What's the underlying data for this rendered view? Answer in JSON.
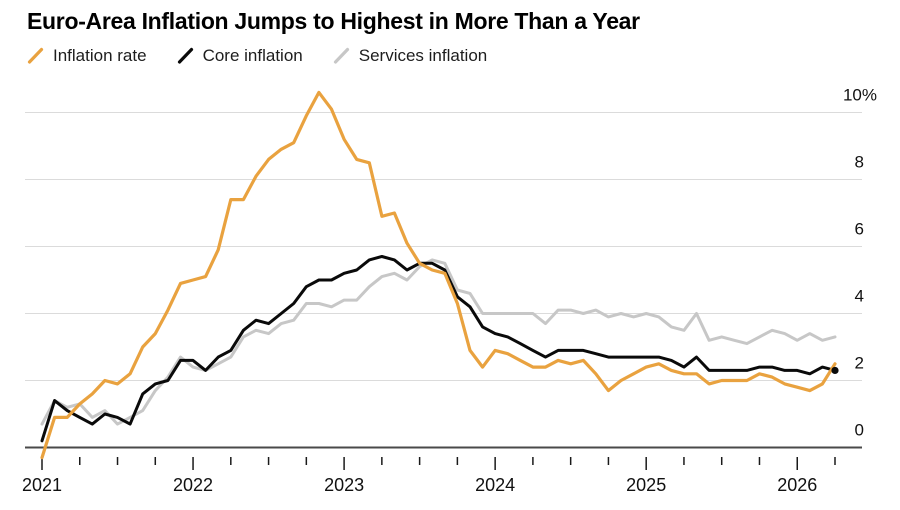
{
  "header": {
    "title": "Euro-Area Inflation Jumps to Highest in More Than a Year"
  },
  "legend": {
    "items": [
      {
        "label": "Inflation rate",
        "color": "#E9A23F"
      },
      {
        "label": "Core inflation",
        "color": "#0A0A0A"
      },
      {
        "label": "Services inflation",
        "color": "#C7C7C7"
      }
    ]
  },
  "colors": {
    "gridline": "#DBDBDB",
    "axis_line": "#4A4A4A",
    "tick": "#1A1A1A",
    "label": "#111111",
    "background": "#FFFFFF"
  },
  "chart_data": {
    "type": "line",
    "title": "Euro-Area Inflation Jumps to Highest in More Than a Year",
    "x_unit": "month",
    "x_start": "2020-12",
    "x_end": "2026-03",
    "x_tick_labels": [
      "2021",
      "2022",
      "2023",
      "2024",
      "2025",
      "2026"
    ],
    "minor_tick_every_months": 3,
    "y_tick_labels": [
      "0",
      "2",
      "4",
      "6",
      "8",
      "10%"
    ],
    "y_gridlines": [
      0,
      2,
      4,
      6,
      8,
      10
    ],
    "ylim": [
      -0.6,
      10.8
    ],
    "grid": "horizontal-only",
    "legend_position": "top-left",
    "series": [
      {
        "name": "Inflation rate",
        "color": "#E9A23F",
        "endpoint_dot": false,
        "values": [
          -0.3,
          0.9,
          0.9,
          1.3,
          1.6,
          2.0,
          1.9,
          2.2,
          3.0,
          3.4,
          4.1,
          4.9,
          5.0,
          5.1,
          5.9,
          7.4,
          7.4,
          8.1,
          8.6,
          8.9,
          9.1,
          9.9,
          10.6,
          10.1,
          9.2,
          8.6,
          8.5,
          6.9,
          7.0,
          6.1,
          5.5,
          5.3,
          5.2,
          4.3,
          2.9,
          2.4,
          2.9,
          2.8,
          2.6,
          2.4,
          2.4,
          2.6,
          2.5,
          2.6,
          2.2,
          1.7,
          2.0,
          2.2,
          2.4,
          2.5,
          2.3,
          2.2,
          2.2,
          1.9,
          2.0,
          2.0,
          2.0,
          2.2,
          2.1,
          1.9,
          1.8,
          1.7,
          1.9,
          2.5
        ]
      },
      {
        "name": "Core inflation",
        "color": "#0A0A0A",
        "endpoint_dot": true,
        "values": [
          0.2,
          1.4,
          1.1,
          0.9,
          0.7,
          1.0,
          0.9,
          0.7,
          1.6,
          1.9,
          2.0,
          2.6,
          2.6,
          2.3,
          2.7,
          2.9,
          3.5,
          3.8,
          3.7,
          4.0,
          4.3,
          4.8,
          5.0,
          5.0,
          5.2,
          5.3,
          5.6,
          5.7,
          5.6,
          5.3,
          5.5,
          5.5,
          5.3,
          4.5,
          4.2,
          3.6,
          3.4,
          3.3,
          3.1,
          2.9,
          2.7,
          2.9,
          2.9,
          2.9,
          2.8,
          2.7,
          2.7,
          2.7,
          2.7,
          2.7,
          2.6,
          2.4,
          2.7,
          2.3,
          2.3,
          2.3,
          2.3,
          2.4,
          2.4,
          2.3,
          2.3,
          2.2,
          2.4,
          2.3
        ]
      },
      {
        "name": "Services inflation",
        "color": "#C7C7C7",
        "endpoint_dot": false,
        "values": [
          0.7,
          1.4,
          1.2,
          1.3,
          0.9,
          1.1,
          0.7,
          0.9,
          1.1,
          1.7,
          2.1,
          2.7,
          2.4,
          2.3,
          2.5,
          2.7,
          3.3,
          3.5,
          3.4,
          3.7,
          3.8,
          4.3,
          4.3,
          4.2,
          4.4,
          4.4,
          4.8,
          5.1,
          5.2,
          5.0,
          5.4,
          5.6,
          5.5,
          4.7,
          4.6,
          4.0,
          4.0,
          4.0,
          4.0,
          4.0,
          3.7,
          4.1,
          4.1,
          4.0,
          4.1,
          3.9,
          4.0,
          3.9,
          4.0,
          3.9,
          3.6,
          3.5,
          4.0,
          3.2,
          3.3,
          3.2,
          3.1,
          3.3,
          3.5,
          3.4,
          3.2,
          3.4,
          3.2,
          3.3
        ]
      }
    ]
  }
}
